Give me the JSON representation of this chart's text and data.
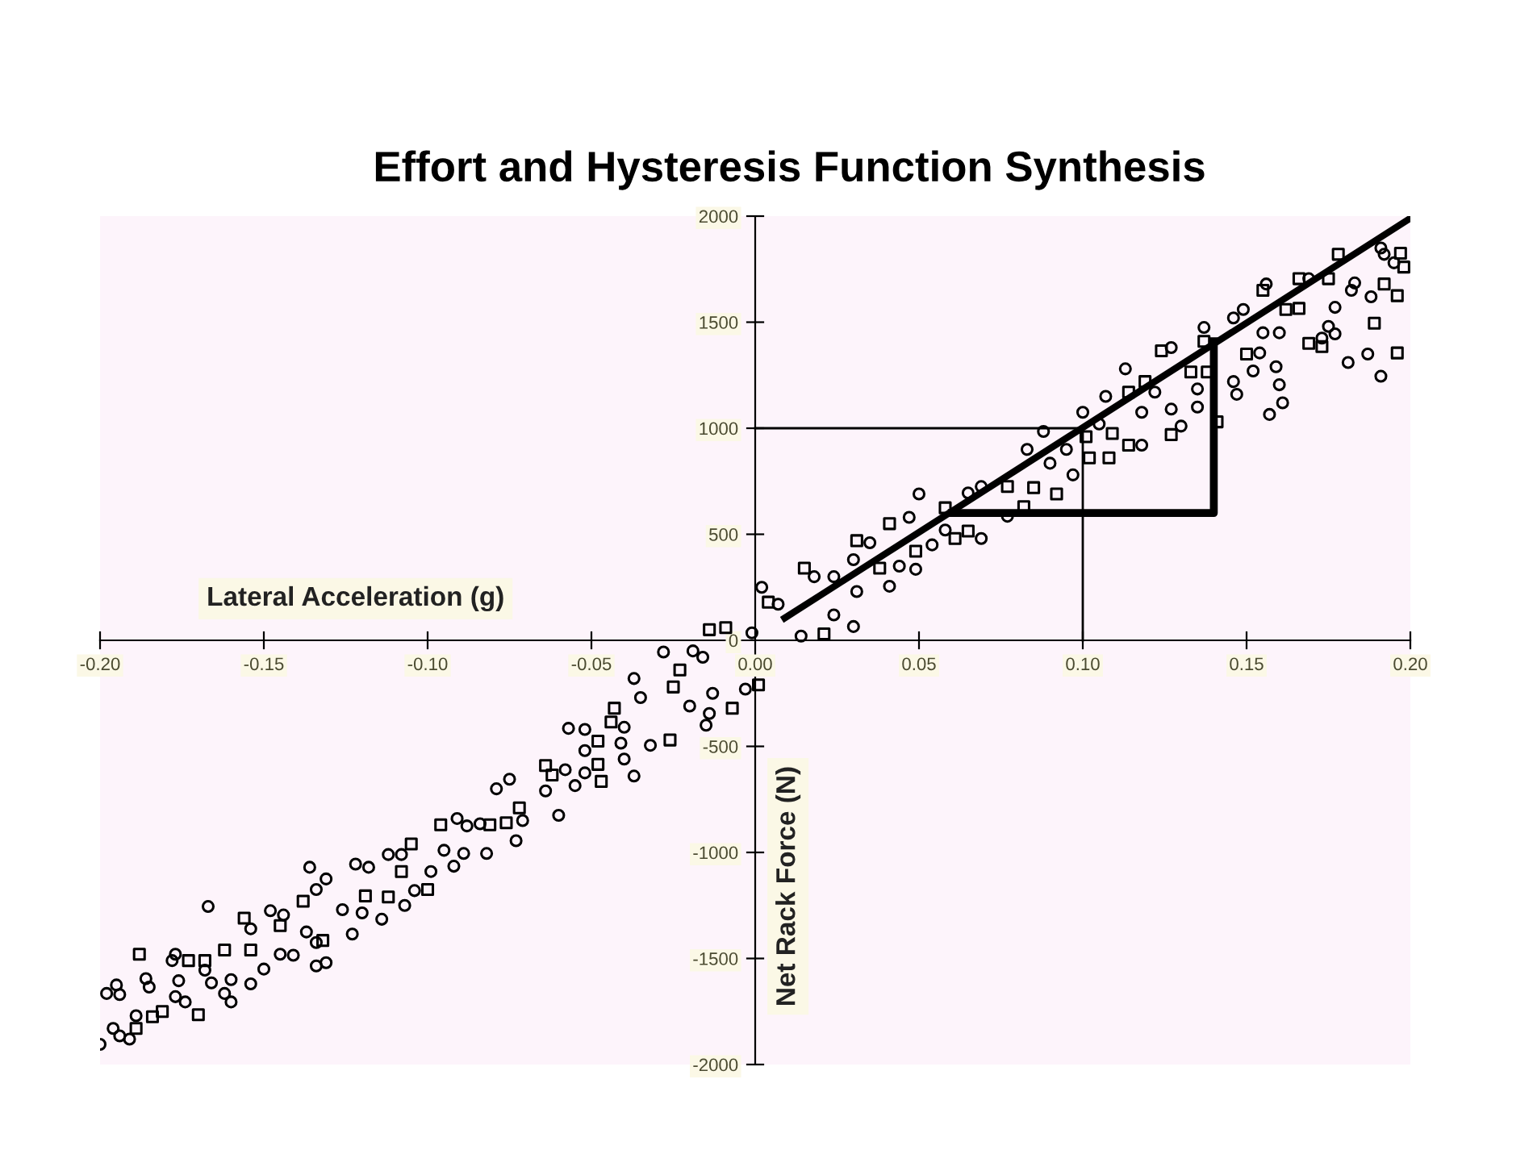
{
  "chart_data": {
    "type": "scatter",
    "title": "Effort and Hysteresis Function Synthesis",
    "xlabel": "Lateral Acceleration (g)",
    "ylabel": "Net Rack Force (N)",
    "xlim": [
      -0.2,
      0.2
    ],
    "ylim": [
      -2000,
      2000
    ],
    "xticks": [
      {
        "value": -0.2,
        "label": "-0.20"
      },
      {
        "value": -0.15,
        "label": "-0.15"
      },
      {
        "value": -0.1,
        "label": "-0.10"
      },
      {
        "value": -0.05,
        "label": "-0.05"
      },
      {
        "value": 0,
        "label": "0.00"
      },
      {
        "value": 0.05,
        "label": "0.05"
      },
      {
        "value": 0.1,
        "label": "0.10"
      },
      {
        "value": 0.15,
        "label": "0.15"
      },
      {
        "value": 0.2,
        "label": "0.20"
      }
    ],
    "yticks": [
      -2000,
      -1500,
      -1000,
      -500,
      0,
      500,
      1000,
      1500,
      2000
    ],
    "grid": false,
    "legend": false,
    "series": [
      {
        "marker": "circle",
        "color": "#000000",
        "x": [
          0.002,
          0.007,
          0.014,
          0.018,
          0.024,
          0.024,
          0.03,
          0.03,
          0.031,
          0.035,
          0.041,
          0.044,
          0.047,
          0.049,
          0.05,
          0.054,
          0.058,
          0.065,
          0.069,
          0.069,
          0.077,
          0.083,
          0.088,
          0.09,
          0.095,
          0.097,
          0.1,
          0.105,
          0.107,
          0.113,
          0.118,
          0.118,
          0.122,
          0.127,
          0.127,
          0.13,
          0.135,
          0.137,
          0.135,
          0.146,
          0.147,
          0.146,
          0.149,
          0.152,
          0.154,
          0.156,
          0.157,
          0.159,
          0.155,
          0.16,
          0.16,
          0.161,
          0.169,
          0.173,
          0.175,
          0.177,
          0.177,
          0.181,
          0.183,
          0.182,
          0.187,
          0.188,
          0.191,
          0.191,
          0.192,
          0.195,
          -0.001,
          -0.028,
          -0.019,
          -0.016,
          -0.037,
          -0.035,
          -0.013,
          -0.02,
          -0.014,
          -0.003,
          -0.015,
          -0.04,
          -0.057,
          -0.052,
          -0.052,
          -0.041,
          -0.032,
          -0.04,
          -0.037,
          -0.052,
          -0.058,
          -0.064,
          -0.06,
          -0.055,
          -0.079,
          -0.075,
          -0.071,
          -0.073,
          -0.084,
          -0.091,
          -0.088,
          -0.082,
          -0.089,
          -0.095,
          -0.092,
          -0.099,
          -0.112,
          -0.108,
          -0.104,
          -0.107,
          -0.114,
          -0.122,
          -0.118,
          -0.126,
          -0.12,
          -0.123,
          -0.131,
          -0.136,
          -0.134,
          -0.137,
          -0.134,
          -0.131,
          -0.134,
          -0.144,
          -0.148,
          -0.154,
          -0.141,
          -0.145,
          -0.15,
          -0.154,
          -0.16,
          -0.16,
          -0.162,
          -0.167,
          -0.166,
          -0.168,
          -0.176,
          -0.177,
          -0.174,
          -0.177,
          -0.178,
          -0.185,
          -0.186,
          -0.189,
          -0.191,
          -0.194,
          -0.196,
          -0.195,
          -0.198,
          -0.194,
          -0.2
        ],
        "values": [
          250,
          170,
          20,
          300,
          120,
          300,
          380,
          65,
          230,
          460,
          255,
          350,
          580,
          335,
          690,
          450,
          520,
          695,
          480,
          725,
          585,
          900,
          985,
          835,
          900,
          780,
          1075,
          1020,
          1150,
          1280,
          920,
          1075,
          1170,
          1380,
          1090,
          1010,
          1185,
          1475,
          1100,
          1220,
          1160,
          1520,
          1560,
          1270,
          1355,
          1680,
          1065,
          1290,
          1450,
          1450,
          1205,
          1120,
          1705,
          1425,
          1480,
          1445,
          1570,
          1310,
          1685,
          1650,
          1350,
          1620,
          1245,
          1850,
          1820,
          1780,
          35,
          -55,
          -50,
          -80,
          -180,
          -270,
          -250,
          -310,
          -345,
          -230,
          -400,
          -410,
          -415,
          -420,
          -520,
          -485,
          -495,
          -560,
          -640,
          -625,
          -610,
          -710,
          -825,
          -685,
          -700,
          -655,
          -850,
          -945,
          -865,
          -840,
          -875,
          -1005,
          -1005,
          -990,
          -1065,
          -1090,
          -1010,
          -1010,
          -1180,
          -1250,
          -1315,
          -1055,
          -1070,
          -1270,
          -1285,
          -1385,
          -1125,
          -1070,
          -1175,
          -1375,
          -1425,
          -1520,
          -1535,
          -1295,
          -1275,
          -1360,
          -1485,
          -1480,
          -1550,
          -1620,
          -1600,
          -1705,
          -1665,
          -1255,
          -1615,
          -1555,
          -1605,
          -1480,
          -1705,
          -1680,
          -1510,
          -1635,
          -1595,
          -1770,
          -1880,
          -1865,
          -1830,
          -1625,
          -1665,
          -1670,
          -1905
        ]
      },
      {
        "marker": "square",
        "color": "#000000",
        "x": [
          0.004,
          0.015,
          0.021,
          0.031,
          0.038,
          0.041,
          0.049,
          0.058,
          0.061,
          0.065,
          0.077,
          0.082,
          0.085,
          0.092,
          0.101,
          0.102,
          0.108,
          0.109,
          0.114,
          0.114,
          0.119,
          0.124,
          0.127,
          0.133,
          0.137,
          0.138,
          0.141,
          0.15,
          0.155,
          0.162,
          0.166,
          0.166,
          0.169,
          0.173,
          0.175,
          0.178,
          0.189,
          0.192,
          0.196,
          0.196,
          0.197,
          0.198,
          -0.014,
          -0.009,
          -0.023,
          -0.025,
          -0.007,
          0.001,
          -0.043,
          -0.044,
          -0.048,
          -0.026,
          -0.048,
          -0.047,
          -0.064,
          -0.062,
          -0.072,
          -0.076,
          -0.096,
          -0.081,
          -0.105,
          -0.108,
          -0.1,
          -0.112,
          -0.119,
          -0.138,
          -0.132,
          -0.145,
          -0.156,
          -0.154,
          -0.162,
          -0.168,
          -0.173,
          -0.17,
          -0.181,
          -0.184,
          -0.188,
          -0.189
        ],
        "values": [
          180,
          340,
          30,
          470,
          340,
          550,
          420,
          625,
          480,
          515,
          725,
          630,
          720,
          690,
          960,
          860,
          860,
          975,
          1170,
          920,
          1220,
          1365,
          970,
          1265,
          1410,
          1265,
          1030,
          1350,
          1650,
          1560,
          1705,
          1565,
          1400,
          1385,
          1705,
          1820,
          1495,
          1680,
          1625,
          1355,
          1825,
          1760,
          50,
          60,
          -140,
          -220,
          -320,
          -210,
          -320,
          -385,
          -475,
          -470,
          -585,
          -665,
          -590,
          -635,
          -790,
          -860,
          -870,
          -870,
          -960,
          -1090,
          -1175,
          -1210,
          -1205,
          -1230,
          -1415,
          -1345,
          -1310,
          -1460,
          -1460,
          -1510,
          -1510,
          -1765,
          -1750,
          -1775,
          -1480,
          -1830
        ]
      },
      {
        "type": "line",
        "color": "#000000",
        "x": [
          0.009,
          0.2
        ],
        "values": [
          105,
          1990
        ]
      },
      {
        "type": "line",
        "color": "#000000",
        "x": [
          0.06,
          0.14,
          0.14
        ],
        "values": [
          600,
          600,
          1410
        ]
      },
      {
        "type": "line",
        "color": "#000000",
        "x": [
          0,
          0.1,
          0.1
        ],
        "values": [
          1000,
          1000,
          0
        ]
      }
    ]
  }
}
